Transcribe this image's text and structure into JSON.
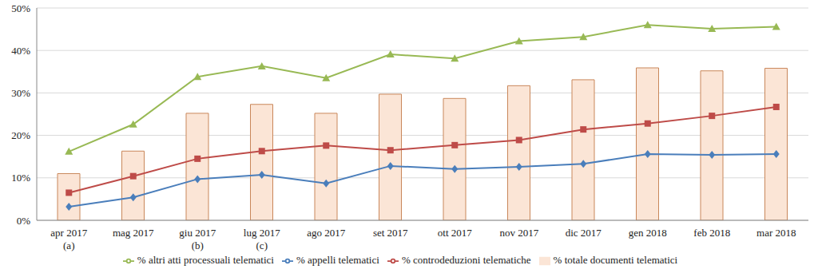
{
  "chart_data": {
    "type": "bar",
    "categories": [
      "apr 2017",
      "mag 2017",
      "giu 2017",
      "lug 2017",
      "ago 2017",
      "set 2017",
      "ott 2017",
      "nov 2017",
      "dic 2017",
      "gen 2018",
      "feb 2018",
      "mar 2018"
    ],
    "annotations": [
      {
        "category": "apr 2017",
        "text": "(a)"
      },
      {
        "category": "giu 2017",
        "text": "(b)"
      },
      {
        "category": "lug 2017",
        "text": "(c)"
      }
    ],
    "series": [
      {
        "name": "% totale documenti telematici",
        "type": "bar",
        "color": "#fbe5d6",
        "values": [
          11,
          16.3,
          25.2,
          27.3,
          25.2,
          29.7,
          28.7,
          31.7,
          33.1,
          35.9,
          35.2,
          35.8
        ]
      },
      {
        "name": "% appelli telematici",
        "type": "line",
        "color": "#4a7ebb",
        "marker": "diamond",
        "values": [
          3.2,
          5.4,
          9.7,
          10.7,
          8.7,
          12.8,
          12.1,
          12.6,
          13.3,
          15.6,
          15.4,
          15.6
        ]
      },
      {
        "name": "% controdeduzioni telematiche",
        "type": "line",
        "color": "#be4b48",
        "marker": "square",
        "values": [
          6.5,
          10.4,
          14.5,
          16.3,
          17.6,
          16.5,
          17.7,
          18.9,
          21.4,
          22.8,
          24.6,
          26.7
        ]
      },
      {
        "name": "% altri atti processuali telematici",
        "type": "line",
        "color": "#98b954",
        "marker": "triangle",
        "values": [
          16.2,
          22.6,
          33.8,
          36.3,
          33.5,
          39.1,
          38.1,
          42.2,
          43.2,
          46,
          45.1,
          45.6
        ]
      }
    ],
    "ylim": [
      0,
      50
    ],
    "yticks": [
      {
        "value": 0,
        "label": "0%"
      },
      {
        "value": 10,
        "label": "10%"
      },
      {
        "value": 20,
        "label": "20%"
      },
      {
        "value": 30,
        "label": "30%"
      },
      {
        "value": 40,
        "label": "40%"
      },
      {
        "value": 50,
        "label": "50%"
      }
    ],
    "grid": true,
    "legend": "bottom"
  }
}
